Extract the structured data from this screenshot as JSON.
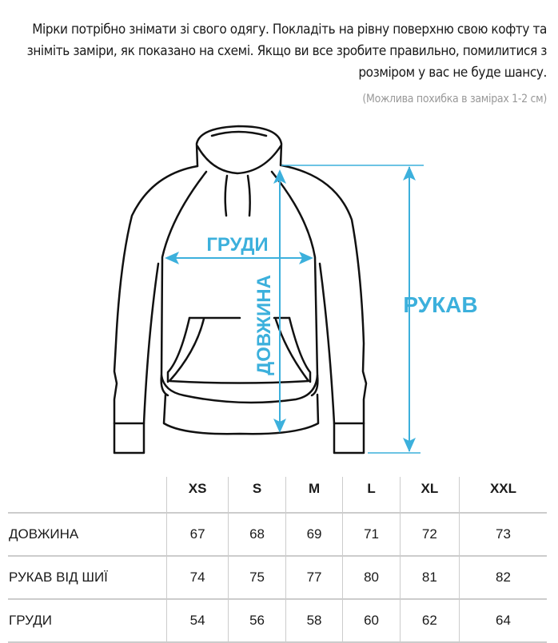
{
  "intro_text": "Мірки потрібно знімати зі свого одягу. Покладіть на рівну поверхню свою кофту та зніміть заміри, як показано на схемі. Якщо ви все зробите правильно, помилитися з розміром у вас не буде шансу.",
  "note": "(Можлива похибка в замірах 1-2 см)",
  "diagram": {
    "chest_label": "ГРУДИ",
    "length_label": "ДОВЖИНА",
    "sleeve_label": "РУКАВ",
    "accent_color": "#3cb0dc"
  },
  "size_table": {
    "headers": [
      "",
      "XS",
      "S",
      "M",
      "L",
      "XL",
      "XXL"
    ],
    "rows": [
      {
        "label": "ДОВЖИНА",
        "values": [
          "67",
          "68",
          "69",
          "71",
          "72",
          "73"
        ]
      },
      {
        "label": "РУКАВ ВІД ШИЇ",
        "values": [
          "74",
          "75",
          "77",
          "80",
          "81",
          "82"
        ]
      },
      {
        "label": "ГРУДИ",
        "values": [
          "54",
          "56",
          "58",
          "60",
          "62",
          "64"
        ]
      }
    ]
  }
}
